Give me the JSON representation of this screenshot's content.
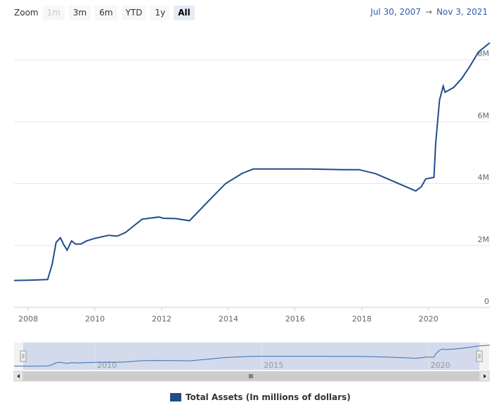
{
  "zoom": {
    "label": "Zoom",
    "buttons": [
      {
        "label": "1m",
        "state": "disabled"
      },
      {
        "label": "3m",
        "state": "normal"
      },
      {
        "label": "6m",
        "state": "normal"
      },
      {
        "label": "YTD",
        "state": "normal"
      },
      {
        "label": "1y",
        "state": "normal"
      },
      {
        "label": "All",
        "state": "selected"
      }
    ]
  },
  "range": {
    "from": "Jul 30, 2007",
    "arrow": "→",
    "to": "Nov 3, 2021"
  },
  "colors": {
    "series": "#1f4e89",
    "navigator_fill": "#ccd6eb",
    "axis_text": "#666666",
    "range_text": "#335cad"
  },
  "legend": {
    "label": "Total Assets (In millions of dollars)"
  },
  "chart_data": {
    "type": "line",
    "y_ticks": [
      "0",
      "2M",
      "4M",
      "6M",
      "8M"
    ],
    "x_ticks": [
      "2008",
      "2010",
      "2012",
      "2014",
      "2016",
      "2018",
      "2020"
    ],
    "ylim": [
      0,
      9000000
    ],
    "xlim": [
      "2007-07-30",
      "2021-11-03"
    ],
    "navigator_ticks": [
      "2010",
      "2015",
      "2020"
    ],
    "series": [
      {
        "name": "Total Assets (In millions of dollars)",
        "points": [
          [
            "2007-07-30",
            870000
          ],
          [
            "2008-01-01",
            880000
          ],
          [
            "2008-08-01",
            900000
          ],
          [
            "2008-09-20",
            1400000
          ],
          [
            "2008-11-01",
            2100000
          ],
          [
            "2008-12-18",
            2250000
          ],
          [
            "2009-01-20",
            2050000
          ],
          [
            "2009-03-01",
            1850000
          ],
          [
            "2009-04-20",
            2150000
          ],
          [
            "2009-06-01",
            2050000
          ],
          [
            "2009-08-01",
            2050000
          ],
          [
            "2009-10-01",
            2150000
          ],
          [
            "2010-01-01",
            2230000
          ],
          [
            "2010-06-01",
            2330000
          ],
          [
            "2010-09-01",
            2300000
          ],
          [
            "2010-12-01",
            2420000
          ],
          [
            "2011-06-01",
            2850000
          ],
          [
            "2011-12-01",
            2920000
          ],
          [
            "2012-01-20",
            2880000
          ],
          [
            "2012-06-01",
            2870000
          ],
          [
            "2012-11-01",
            2800000
          ],
          [
            "2013-06-01",
            3450000
          ],
          [
            "2013-12-01",
            4000000
          ],
          [
            "2014-06-01",
            4330000
          ],
          [
            "2014-10-01",
            4470000
          ],
          [
            "2015-06-01",
            4470000
          ],
          [
            "2016-06-01",
            4470000
          ],
          [
            "2017-06-01",
            4450000
          ],
          [
            "2017-12-01",
            4450000
          ],
          [
            "2018-06-01",
            4320000
          ],
          [
            "2019-01-01",
            4050000
          ],
          [
            "2019-08-15",
            3760000
          ],
          [
            "2019-10-15",
            3900000
          ],
          [
            "2019-12-01",
            4150000
          ],
          [
            "2020-03-01",
            4200000
          ],
          [
            "2020-03-20",
            5300000
          ],
          [
            "2020-05-01",
            6700000
          ],
          [
            "2020-06-10",
            7150000
          ],
          [
            "2020-07-01",
            6950000
          ],
          [
            "2020-10-01",
            7100000
          ],
          [
            "2021-01-01",
            7400000
          ],
          [
            "2021-04-01",
            7800000
          ],
          [
            "2021-07-01",
            8250000
          ],
          [
            "2021-11-03",
            8550000
          ]
        ]
      }
    ]
  }
}
